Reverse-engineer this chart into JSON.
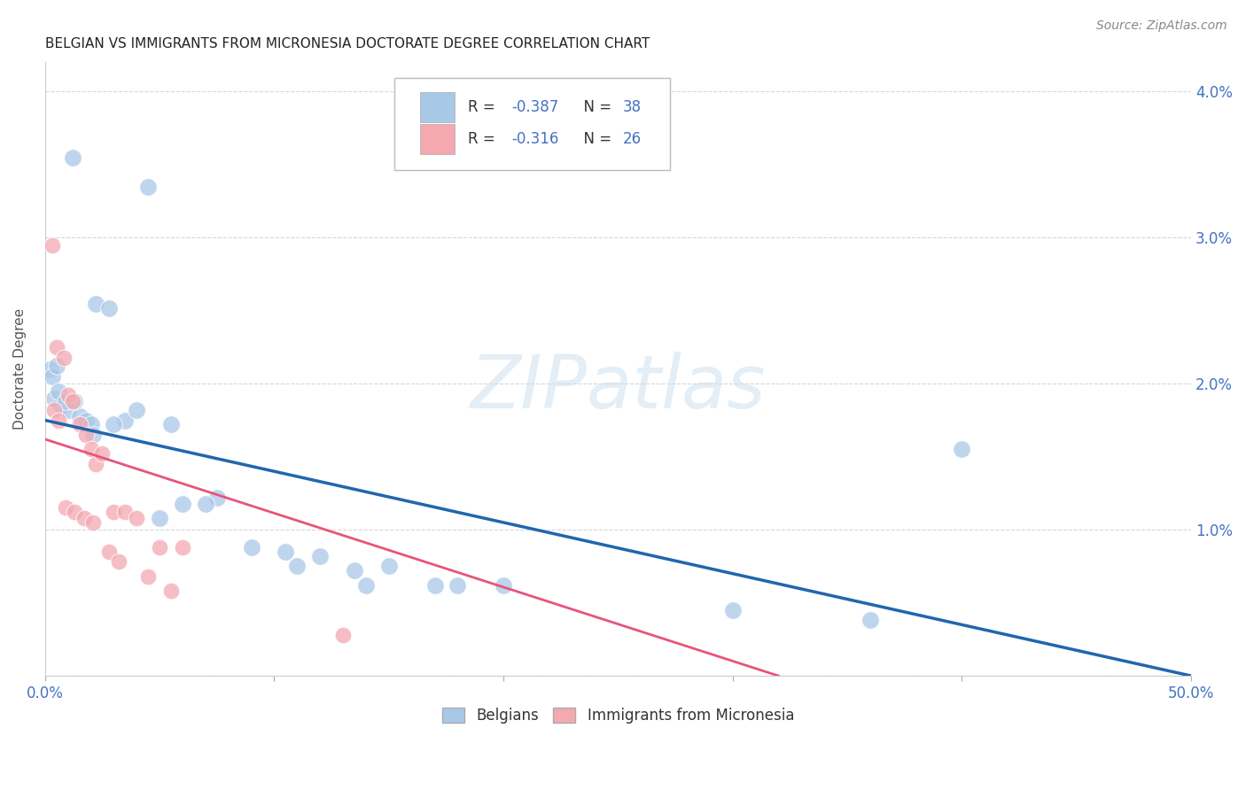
{
  "title": "BELGIAN VS IMMIGRANTS FROM MICRONESIA DOCTORATE DEGREE CORRELATION CHART",
  "source": "Source: ZipAtlas.com",
  "ylabel": "Doctorate Degree",
  "xlim": [
    0,
    50
  ],
  "ylim": [
    0,
    4.2
  ],
  "ytick_vals": [
    0,
    1.0,
    2.0,
    3.0,
    4.0
  ],
  "ytick_labels": [
    "",
    "1.0%",
    "2.0%",
    "3.0%",
    "4.0%"
  ],
  "xtick_positions": [
    0,
    10,
    20,
    30,
    40,
    50
  ],
  "xtick_labels": [
    "0.0%",
    "",
    "",
    "",
    "",
    "50.0%"
  ],
  "blue_R": "-0.387",
  "blue_N": "38",
  "pink_R": "-0.316",
  "pink_N": "26",
  "blue_scatter_color": "#a8c8e8",
  "pink_scatter_color": "#f4a8b0",
  "blue_line_color": "#2166ac",
  "pink_line_color": "#e8547a",
  "blue_line_start_y": 1.75,
  "blue_line_end_y": 0.0,
  "pink_line_start_y": 1.62,
  "pink_line_end_x": 32.0,
  "pink_line_end_y": 0.0,
  "legend_label_blue": "Belgians",
  "legend_label_pink": "Immigrants from Micronesia",
  "watermark_text": "ZIPatlas",
  "blue_x": [
    1.2,
    4.5,
    0.2,
    0.3,
    0.5,
    0.7,
    1.0,
    1.5,
    1.8,
    2.0,
    2.2,
    2.8,
    3.5,
    4.0,
    5.5,
    6.0,
    7.5,
    9.0,
    10.5,
    12.0,
    13.5,
    15.0,
    17.0,
    20.0,
    3.0,
    0.4,
    0.6,
    0.9,
    1.3,
    2.1,
    5.0,
    7.0,
    11.0,
    14.0,
    18.0,
    30.0,
    36.0,
    40.0
  ],
  "blue_y": [
    3.55,
    3.35,
    2.1,
    2.05,
    2.12,
    1.85,
    1.82,
    1.78,
    1.75,
    1.72,
    2.55,
    2.52,
    1.75,
    1.82,
    1.72,
    1.18,
    1.22,
    0.88,
    0.85,
    0.82,
    0.72,
    0.75,
    0.62,
    0.62,
    1.72,
    1.9,
    1.95,
    1.88,
    1.88,
    1.65,
    1.08,
    1.18,
    0.75,
    0.62,
    0.62,
    0.45,
    0.38,
    1.55
  ],
  "pink_x": [
    0.3,
    0.5,
    0.8,
    1.0,
    1.2,
    1.5,
    1.8,
    2.0,
    2.2,
    2.5,
    3.0,
    3.5,
    4.0,
    5.0,
    0.4,
    0.6,
    0.9,
    1.3,
    1.7,
    2.1,
    2.8,
    3.2,
    4.5,
    5.5,
    6.0,
    13.0
  ],
  "pink_y": [
    2.95,
    2.25,
    2.18,
    1.92,
    1.88,
    1.72,
    1.65,
    1.55,
    1.45,
    1.52,
    1.12,
    1.12,
    1.08,
    0.88,
    1.82,
    1.75,
    1.15,
    1.12,
    1.08,
    1.05,
    0.85,
    0.78,
    0.68,
    0.58,
    0.88,
    0.28
  ],
  "title_fontsize": 11,
  "tick_fontsize": 12,
  "ylabel_fontsize": 11,
  "source_fontsize": 10
}
